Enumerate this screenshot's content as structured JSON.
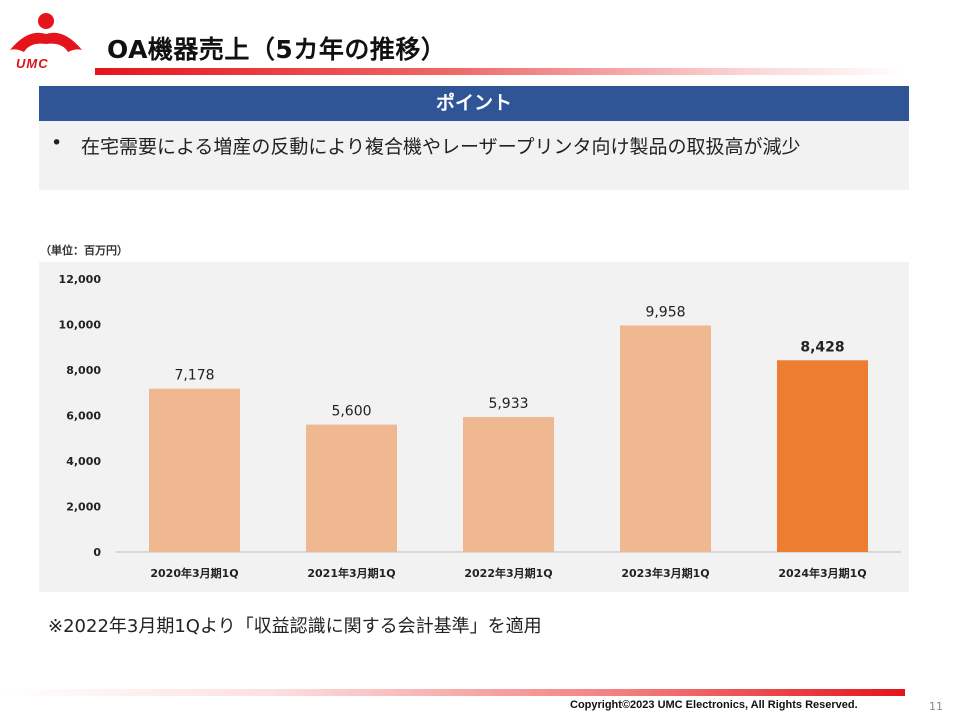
{
  "header": {
    "logo_text": "UMC",
    "title": "OA機器売上（5カ年の推移）"
  },
  "point": {
    "label": "ポイント",
    "bullet": "•",
    "text": "在宅需要による増産の反動により複合機やレーザープリンタ向け製品の取扱高が減少"
  },
  "chart_data": {
    "type": "bar",
    "unit_label": "（単位：百万円）",
    "categories": [
      "2020年3月期1Q",
      "2021年3月期1Q",
      "2022年3月期1Q",
      "2023年3月期1Q",
      "2024年3月期1Q"
    ],
    "values": [
      7178,
      5600,
      5933,
      9958,
      8428
    ],
    "value_labels": [
      "7,178",
      "5,600",
      "5,933",
      "9,958",
      "8,428"
    ],
    "ylim": [
      0,
      12000
    ],
    "yticks": [
      0,
      2000,
      4000,
      6000,
      8000,
      10000,
      12000
    ],
    "ytick_labels": [
      "0",
      "2,000",
      "4,000",
      "6,000",
      "8,000",
      "10,000",
      "12,000"
    ],
    "grid": false,
    "colors": {
      "bar": "#f0b891",
      "highlight_bar": "#ed7d31",
      "axis": "#bfbfbf"
    },
    "highlight_index": 4
  },
  "note": "※2022年3月期1Qより「収益認識に関する会計基準」を適用",
  "footer": {
    "copyright": "Copyright©2023 UMC Electronics, All Rights Reserved.",
    "page_number": "11"
  }
}
